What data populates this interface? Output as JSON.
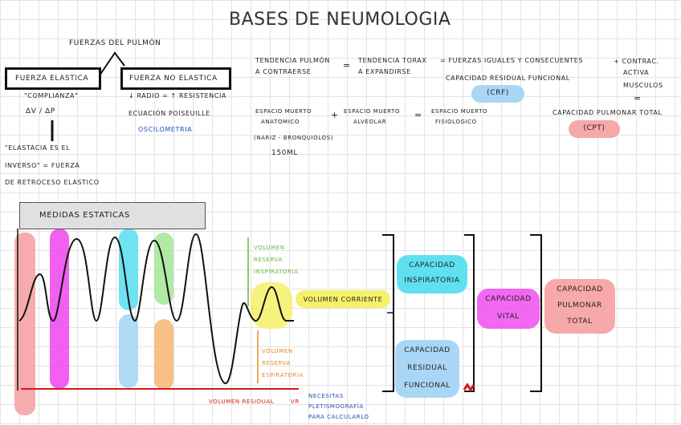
{
  "title": "BASES DE NEUMOLOGIA",
  "colors": {
    "pink": "#f5a3a3",
    "magenta": "#ee44ee",
    "cyan": "#5ee0f0",
    "light_green": "#a9e89a",
    "light_blue": "#a9d6f5",
    "orange": "#f5b97a",
    "yellow": "#f6f06a",
    "salmon": "#f7a8a8",
    "red_line": "#d11a1a",
    "green_text": "#66b53a",
    "orange_text": "#e48a2a",
    "blue_text": "#1f4fb5"
  },
  "top_left": {
    "fuerzas_pulmon": "Fuerzas del pulmón",
    "fuerza_elastica": "Fuerza elastica",
    "fuerza_no_elastica": "Fuerza no elastica",
    "complianza": "\"Complianza\"",
    "dv_dp": "ΔV / ΔP",
    "radio_line": "↓ Radio = ↑ Resistencia",
    "poiseuille": "Ecuación Poiseuille",
    "oscilometria": "Oscilometria",
    "elastancia_1": "\"Elastacia es el",
    "elastancia_2": "inverso\" = fuerza",
    "elastancia_3": "de retroceso elastico"
  },
  "top_right": {
    "tendencia_pulmon_1": "Tendencia pulmón",
    "tendencia_pulmon_2": "a contraerse",
    "eq1": "=",
    "tendencia_torax_1": "Tendencia torax",
    "tendencia_torax_2": "a expandirse",
    "fuerzas_iguales": "= Fuerzas iguales y consecuentes",
    "capacidad_residual_funcional": "Capacidad residual funcional",
    "crf": "(CRF)",
    "contrac_1": "+ Contrac.",
    "contrac_2": "activa",
    "contrac_3": "musculos",
    "eq2": "=",
    "capacidad_pulmonar_total": "Capacidad pulmonar total",
    "cpt": "(CPT)",
    "espacio_anatomico_1": "Espacio muerto",
    "espacio_anatomico_2": "anatomico",
    "plus": "+",
    "espacio_alveolar_1": "Espacio muerto",
    "espacio_alveolar_2": "alveolar",
    "eq3": "=",
    "espacio_fisiologico_1": "Espacio muerto",
    "espacio_fisiologico_2": "fisiologico",
    "nariz": "(Nariz - Bronquiolos)",
    "ml": "150ml"
  },
  "diagram": {
    "medidas_estaticas": "Medidas estaticas",
    "vrins_1": "Volumen",
    "vrins_2": "Reserva",
    "vrins_3": "Inspiratoria",
    "volumen_corriente": "Volumen corriente",
    "vre_1": "Volumen",
    "vre_2": "reserva",
    "vre_3": "Espiratoria",
    "volumen_residual": "Volumen residual",
    "vr": "VR",
    "necesitas_1": "Necesitas",
    "necesitas_2": "pletismografía",
    "necesitas_3": "para calcularlo",
    "capacidad_inspiratoria_1": "Capacidad",
    "capacidad_inspiratoria_2": "Inspiratoria",
    "capacidad_residual_1": "Capacidad",
    "capacidad_residual_2": "residual",
    "capacidad_residual_3": "funcional",
    "capacidad_vital_1": "Capacidad",
    "capacidad_vital_2": "vital",
    "cpt_1": "Capacidad",
    "cpt_2": "pulmonar",
    "cpt_3": "total"
  }
}
